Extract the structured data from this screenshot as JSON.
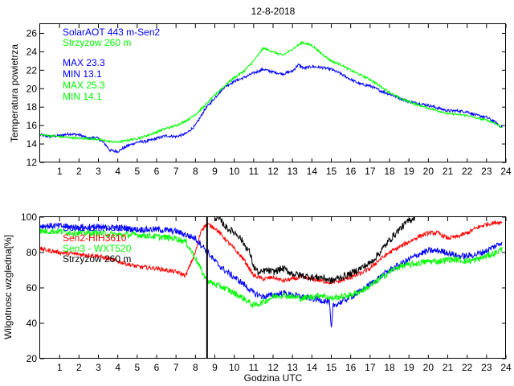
{
  "figure": {
    "title": "12-8-2018",
    "xlabel": "Godzina UTC"
  },
  "chart_data": [
    {
      "type": "line",
      "title": "12-8-2018",
      "xlabel": "",
      "ylabel": "Temperatura powietrza",
      "xlim": [
        0,
        24
      ],
      "ylim": [
        12,
        27
      ],
      "xticks": [
        1,
        2,
        3,
        4,
        5,
        6,
        7,
        8,
        9,
        10,
        11,
        12,
        13,
        14,
        15,
        16,
        17,
        18,
        19,
        20,
        21,
        22,
        23,
        24
      ],
      "yticks": [
        12,
        14,
        16,
        18,
        20,
        22,
        24,
        26
      ],
      "grid": false,
      "legend_position": "top-left",
      "legend": [
        {
          "label": "SolarAOT 443 m-Sen2",
          "color": "#0000ff"
        },
        {
          "label": "Strzyzow 260 m",
          "color": "#00ff00"
        },
        {
          "label": "MAX 23.3",
          "color": "#0000ff"
        },
        {
          "label": "MIN 13.1",
          "color": "#0000ff"
        },
        {
          "label": "MAX 25.3",
          "color": "#00ff00"
        },
        {
          "label": "MIN 14.1",
          "color": "#00ff00"
        }
      ],
      "series": [
        {
          "name": "SolarAOT 443 m-Sen2",
          "color": "#0000ff",
          "noise": 0.15,
          "x": [
            0,
            0.5,
            1,
            1.5,
            2,
            2.5,
            2.9,
            3.3,
            3.6,
            4,
            4.5,
            5,
            5.5,
            6,
            6.5,
            7,
            7.5,
            8,
            8.5,
            9,
            9.5,
            10,
            10.5,
            11,
            11.5,
            12,
            12.5,
            13,
            13.3,
            13.6,
            14,
            14.5,
            15,
            15.5,
            16,
            16.5,
            17,
            17.5,
            18,
            18.5,
            19,
            19.5,
            20,
            20.5,
            21,
            21.5,
            22,
            22.5,
            23,
            23.5,
            23.8
          ],
          "y": [
            15.0,
            14.8,
            14.9,
            15.1,
            15.0,
            14.6,
            14.7,
            14.1,
            13.3,
            13.2,
            13.8,
            14.2,
            14.3,
            14.6,
            14.9,
            14.8,
            15.1,
            16.0,
            17.8,
            19.0,
            20.2,
            20.8,
            21.2,
            21.7,
            22.1,
            21.8,
            21.6,
            21.9,
            22.6,
            22.2,
            22.4,
            22.3,
            22.1,
            21.6,
            21.0,
            20.5,
            20.3,
            19.8,
            19.4,
            19.0,
            18.6,
            18.4,
            18.2,
            17.9,
            17.6,
            17.6,
            17.5,
            17.1,
            16.9,
            16.3,
            15.8
          ]
        },
        {
          "name": "Strzyzow 260 m",
          "color": "#00ff00",
          "noise": 0.12,
          "x": [
            0,
            0.5,
            1,
            1.5,
            2,
            2.5,
            3,
            3.5,
            4,
            4.5,
            5,
            5.5,
            6,
            6.5,
            7,
            7.5,
            8,
            8.5,
            9,
            9.5,
            10,
            10.5,
            11,
            11.5,
            12,
            12.5,
            13,
            13.5,
            14,
            14.5,
            15,
            15.5,
            16,
            16.5,
            17,
            17.5,
            18,
            18.5,
            19,
            19.5,
            20,
            20.5,
            21,
            21.5,
            22,
            22.5,
            23,
            23.5,
            23.8
          ],
          "y": [
            15.0,
            14.9,
            14.8,
            14.7,
            14.6,
            14.6,
            14.5,
            14.3,
            14.2,
            14.4,
            14.6,
            14.9,
            15.3,
            15.7,
            16.0,
            16.5,
            17.2,
            18.2,
            19.3,
            20.3,
            21.2,
            21.9,
            23.0,
            24.4,
            24.0,
            23.6,
            24.3,
            25.0,
            24.7,
            23.8,
            23.0,
            22.6,
            22.0,
            21.5,
            21.0,
            20.3,
            19.6,
            19.0,
            18.6,
            18.2,
            17.9,
            17.6,
            17.3,
            17.2,
            17.1,
            16.8,
            16.6,
            16.2,
            15.8
          ]
        }
      ]
    },
    {
      "type": "line",
      "title": "",
      "xlabel": "Godzina UTC",
      "ylabel": "Wilgotnosc wzgledna[%]",
      "xlim": [
        0,
        24
      ],
      "ylim": [
        20,
        100
      ],
      "xticks": [
        1,
        2,
        3,
        4,
        5,
        6,
        7,
        8,
        9,
        10,
        11,
        12,
        13,
        14,
        15,
        16,
        17,
        18,
        19,
        20,
        21,
        22,
        23,
        24
      ],
      "yticks": [
        20,
        40,
        60,
        80,
        100
      ],
      "grid": false,
      "legend_position": "top-left",
      "legend": [
        {
          "label": "Sen1-Ultimeter",
          "color": "#0000ff"
        },
        {
          "label": "Sen2-HIH3610",
          "color": "#ff0000"
        },
        {
          "label": "Sen3 - WXT520",
          "color": "#00ff00"
        },
        {
          "label": "Strzyzow 260 m",
          "color": "#000000"
        }
      ],
      "vertical_line": {
        "x": 8.6,
        "color": "#000000"
      },
      "series": [
        {
          "name": "Sen2-HIH3610",
          "color": "#ff0000",
          "noise": 1.2,
          "x": [
            0,
            1,
            2,
            3,
            4,
            5,
            6,
            7,
            7.5,
            8,
            8.3,
            8.6,
            9,
            9.5,
            10,
            10.5,
            11,
            11.5,
            12,
            12.5,
            13,
            13.5,
            14,
            14.5,
            15,
            15.5,
            16,
            16.5,
            17,
            17.5,
            18,
            18.5,
            19,
            19.5,
            20,
            20.5,
            21,
            21.5,
            22,
            22.5,
            23,
            23.5,
            23.8
          ],
          "y": [
            82,
            80,
            79,
            78,
            75,
            72,
            71,
            69,
            67,
            80,
            93,
            96,
            94,
            88,
            82,
            76,
            67,
            65,
            66,
            64,
            65,
            66,
            65,
            64,
            63,
            64,
            66,
            68,
            71,
            76,
            80,
            83,
            86,
            89,
            91,
            91,
            88,
            89,
            91,
            94,
            96,
            97,
            97
          ]
        },
        {
          "name": "Sen1-Ultimeter",
          "color": "#0000ff",
          "noise": 1.8,
          "x": [
            0,
            1,
            2,
            3,
            4,
            5,
            6,
            7,
            7.5,
            8,
            8.5,
            9,
            9.5,
            10,
            10.5,
            11,
            11.5,
            12,
            12.5,
            13,
            13.5,
            14,
            14.5,
            14.9,
            15.0,
            15.1,
            15.5,
            16,
            16.5,
            17,
            17.5,
            18,
            18.5,
            19,
            19.5,
            20,
            20.5,
            21,
            21.5,
            22,
            22.5,
            23,
            23.5,
            23.8
          ],
          "y": [
            95,
            95,
            94,
            94,
            94,
            93,
            93,
            92,
            90,
            88,
            82,
            75,
            70,
            66,
            62,
            57,
            55,
            56,
            57,
            56,
            55,
            54,
            53,
            52,
            36,
            50,
            52,
            55,
            58,
            62,
            66,
            70,
            73,
            76,
            79,
            81,
            81,
            80,
            78,
            78,
            79,
            81,
            84,
            86
          ]
        },
        {
          "name": "Sen3 - WXT520",
          "color": "#00ff00",
          "noise": 1.8,
          "x": [
            0,
            1,
            2,
            3,
            4,
            5,
            6,
            7,
            7.5,
            8,
            8.3,
            8.6,
            9,
            9.5,
            10,
            10.5,
            11,
            11.5,
            12,
            12.5,
            13,
            13.5,
            14,
            14.5,
            15,
            15.5,
            16,
            16.5,
            17,
            17.5,
            18,
            18.5,
            19,
            19.5,
            20,
            20.5,
            21,
            21.5,
            22,
            22.5,
            23,
            23.5,
            23.8
          ],
          "y": [
            92,
            92,
            91,
            91,
            90,
            90,
            89,
            88,
            86,
            77,
            70,
            64,
            62,
            60,
            57,
            54,
            50,
            52,
            55,
            56,
            55,
            54,
            55,
            56,
            54,
            55,
            56,
            58,
            61,
            65,
            69,
            72,
            73,
            74,
            75,
            75,
            76,
            76,
            75,
            76,
            78,
            80,
            82
          ]
        },
        {
          "name": "Strzyzow 260 m",
          "color": "#000000",
          "noise": 2.0,
          "x": [
            9.0,
            9.3,
            9.6,
            9.9,
            10.2,
            10.5,
            10.8,
            11.0,
            11.3,
            11.6,
            12,
            12.5,
            13,
            13.5,
            14,
            14.5,
            15,
            15.5,
            16,
            16.5,
            17,
            17.5,
            18,
            18.5,
            19,
            19.3
          ],
          "y": [
            100,
            98,
            94,
            92,
            90,
            85,
            80,
            72,
            68,
            70,
            69,
            71,
            68,
            67,
            66,
            66,
            64,
            66,
            68,
            71,
            74,
            80,
            87,
            93,
            98,
            100
          ]
        }
      ]
    }
  ]
}
